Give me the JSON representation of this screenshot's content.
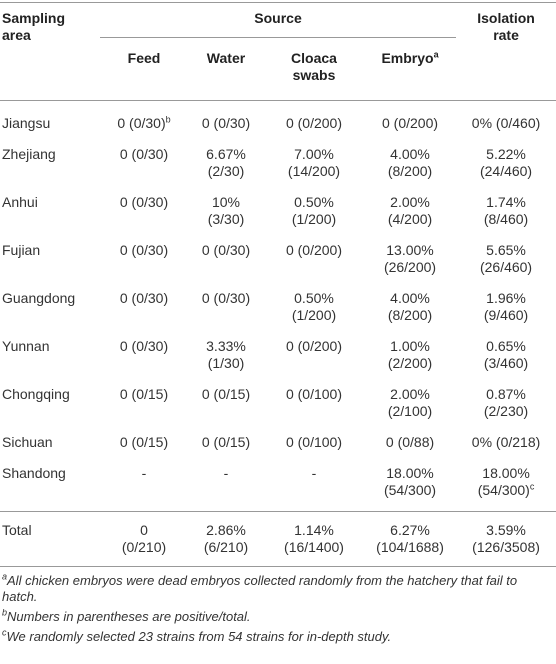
{
  "table": {
    "header": {
      "area": [
        "Sampling",
        "area"
      ],
      "source": "Source",
      "rate": [
        "Isolation",
        "rate"
      ],
      "subs": [
        [
          "Feed"
        ],
        [
          "Water"
        ],
        [
          "Cloaca",
          "swabs"
        ],
        {
          "lines": [
            "Embryo"
          ],
          "sup": "a"
        }
      ]
    },
    "rows": [
      {
        "area": "Jiangsu",
        "cells": [
          {
            "lines": [
              "0 (0/30)"
            ],
            "sup": "b"
          },
          [
            "0 (0/30)"
          ],
          [
            "0 (0/200)"
          ],
          [
            "0 (0/200)"
          ],
          [
            "0% (0/460)"
          ]
        ]
      },
      {
        "area": "Zhejiang",
        "cells": [
          [
            "0 (0/30)"
          ],
          [
            "6.67%",
            "(2/30)"
          ],
          [
            "7.00%",
            "(14/200)"
          ],
          [
            "4.00%",
            "(8/200)"
          ],
          [
            "5.22%",
            "(24/460)"
          ]
        ]
      },
      {
        "area": "Anhui",
        "cells": [
          [
            "0 (0/30)"
          ],
          [
            "10% (3/30)"
          ],
          [
            "0.50%",
            "(1/200)"
          ],
          [
            "2.00%",
            "(4/200)"
          ],
          [
            "1.74%",
            "(8/460)"
          ]
        ]
      },
      {
        "area": "Fujian",
        "cells": [
          [
            "0 (0/30)"
          ],
          [
            "0 (0/30)"
          ],
          [
            "0 (0/200)"
          ],
          [
            "13.00%",
            "(26/200)"
          ],
          [
            "5.65%",
            "(26/460)"
          ]
        ]
      },
      {
        "area": "Guangdong",
        "cells": [
          [
            "0 (0/30)"
          ],
          [
            "0 (0/30)"
          ],
          [
            "0.50%",
            "(1/200)"
          ],
          [
            "4.00%",
            "(8/200)"
          ],
          [
            "1.96%",
            "(9/460)"
          ]
        ]
      },
      {
        "area": "Yunnan",
        "cells": [
          [
            "0 (0/30)"
          ],
          [
            "3.33%",
            "(1/30)"
          ],
          [
            "0 (0/200)"
          ],
          [
            "1.00%",
            "(2/200)"
          ],
          [
            "0.65%",
            "(3/460)"
          ]
        ]
      },
      {
        "area": "Chongqing",
        "cells": [
          [
            "0 (0/15)"
          ],
          [
            "0 (0/15)"
          ],
          [
            "0 (0/100)"
          ],
          [
            "2.00%",
            "(2/100)"
          ],
          [
            "0.87%",
            "(2/230)"
          ]
        ]
      },
      {
        "area": "Sichuan",
        "cells": [
          [
            "0 (0/15)"
          ],
          [
            "0 (0/15)"
          ],
          [
            "0 (0/100)"
          ],
          [
            "0 (0/88)"
          ],
          [
            "0% (0/218)"
          ]
        ]
      },
      {
        "area": "Shandong",
        "cells": [
          [
            "-"
          ],
          [
            "-"
          ],
          [
            "-"
          ],
          [
            "18.00%",
            "(54/300)"
          ],
          {
            "lines": [
              "18.00%",
              "(54/300)"
            ],
            "sup": "c"
          }
        ]
      }
    ],
    "total": {
      "area": "Total",
      "cells": [
        [
          "0",
          "(0/210)"
        ],
        [
          "2.86%",
          "(6/210)"
        ],
        [
          "1.14%",
          "(16/1400)"
        ],
        [
          "6.27%",
          "(104/1688)"
        ],
        [
          "3.59%",
          "(126/3508)"
        ]
      ]
    },
    "footnotes": [
      {
        "mark": "a",
        "text": "All chicken embryos were dead embryos collected randomly from the hatchery that fail to hatch."
      },
      {
        "mark": "b",
        "text": "Numbers in parentheses are positive/total."
      },
      {
        "mark": "c",
        "text": "We randomly selected 23 strains from 54 strains for in-depth study."
      }
    ]
  }
}
